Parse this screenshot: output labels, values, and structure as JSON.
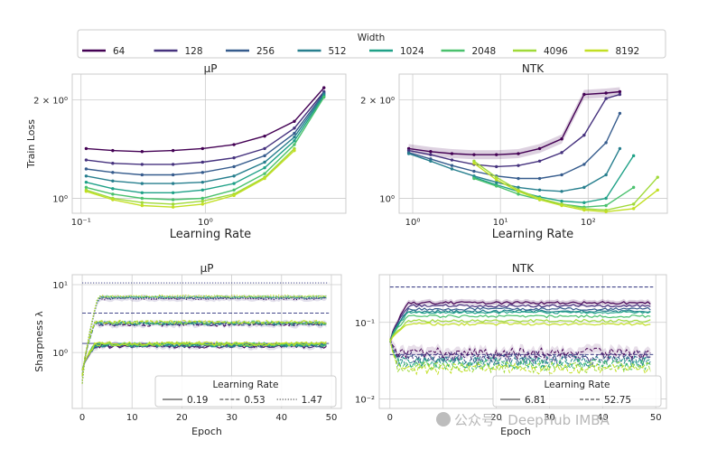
{
  "legend_top": {
    "title": "Width",
    "entries": [
      {
        "label": "64",
        "color": "#440154"
      },
      {
        "label": "128",
        "color": "#46327e"
      },
      {
        "label": "256",
        "color": "#365c8d"
      },
      {
        "label": "512",
        "color": "#277f8e"
      },
      {
        "label": "1024",
        "color": "#1fa187"
      },
      {
        "label": "2048",
        "color": "#4ac16d"
      },
      {
        "label": "4096",
        "color": "#a0da39"
      },
      {
        "label": "8192",
        "color": "#c2df23"
      }
    ]
  },
  "watermark": "公众号 · DeepHub IMBA",
  "chart_data": [
    {
      "id": "mup-loss",
      "type": "line",
      "title": "μP",
      "xlabel": "Learning Rate",
      "ylabel": "Train Loss",
      "xscale": "log",
      "yscale": "log",
      "xlim": [
        0.085,
        13.5
      ],
      "ylim": [
        0.9,
        2.4
      ],
      "xticks": [
        {
          "v": 0.1,
          "label": "10⁻¹"
        },
        {
          "v": 1,
          "label": "10⁰"
        }
      ],
      "yticks": [
        {
          "v": 1,
          "label": "10⁰"
        },
        {
          "v": 2,
          "label": "2 × 10⁰"
        }
      ],
      "x": [
        0.11,
        0.18,
        0.31,
        0.55,
        0.95,
        1.7,
        3.0,
        5.2,
        9.0
      ],
      "series": [
        {
          "name": "64",
          "values": [
            1.42,
            1.4,
            1.39,
            1.4,
            1.42,
            1.46,
            1.55,
            1.72,
            2.18
          ]
        },
        {
          "name": "128",
          "values": [
            1.31,
            1.28,
            1.27,
            1.27,
            1.29,
            1.33,
            1.42,
            1.64,
            2.12
          ]
        },
        {
          "name": "256",
          "values": [
            1.23,
            1.2,
            1.18,
            1.18,
            1.2,
            1.25,
            1.35,
            1.58,
            2.1
          ]
        },
        {
          "name": "512",
          "values": [
            1.17,
            1.13,
            1.11,
            1.11,
            1.12,
            1.17,
            1.29,
            1.54,
            2.08
          ]
        },
        {
          "name": "1024",
          "values": [
            1.12,
            1.07,
            1.04,
            1.04,
            1.06,
            1.11,
            1.24,
            1.5,
            2.06
          ]
        },
        {
          "name": "2048",
          "values": [
            1.08,
            1.03,
            1.0,
            0.99,
            1.0,
            1.06,
            1.19,
            1.46,
            2.04
          ]
        },
        {
          "name": "4096",
          "values": [
            1.06,
            1.0,
            0.97,
            0.96,
            0.98,
            1.03,
            1.16,
            1.42,
            null
          ]
        },
        {
          "name": "8192",
          "values": [
            1.05,
            0.99,
            0.95,
            0.94,
            0.96,
            1.02,
            1.15,
            1.4,
            null
          ]
        }
      ]
    },
    {
      "id": "ntk-loss",
      "type": "line",
      "title": "NTK",
      "xlabel": "Learning Rate",
      "ylabel": "",
      "xscale": "log",
      "yscale": "log",
      "xlim": [
        0.7,
        800
      ],
      "ylim": [
        0.9,
        2.4
      ],
      "xticks": [
        {
          "v": 1,
          "label": "10⁰"
        },
        {
          "v": 10,
          "label": "10¹"
        },
        {
          "v": 100,
          "label": "10²"
        }
      ],
      "yticks": [
        {
          "v": 1,
          "label": "10⁰"
        },
        {
          "v": 2,
          "label": "2 × 10⁰"
        }
      ],
      "series": [
        {
          "name": "64",
          "x": [
            0.9,
            1.6,
            2.8,
            5,
            9,
            16,
            28,
            50,
            90,
            160,
            230
          ],
          "values": [
            1.42,
            1.39,
            1.37,
            1.36,
            1.36,
            1.37,
            1.42,
            1.52,
            2.08,
            2.1,
            2.12
          ]
        },
        {
          "name": "128",
          "x": [
            0.9,
            1.6,
            2.8,
            5,
            9,
            16,
            28,
            50,
            90,
            160,
            230
          ],
          "values": [
            1.4,
            1.36,
            1.31,
            1.27,
            1.25,
            1.26,
            1.3,
            1.38,
            1.56,
            2.02,
            2.08
          ]
        },
        {
          "name": "256",
          "x": [
            0.9,
            1.6,
            2.8,
            5,
            9,
            16,
            28,
            50,
            90,
            160,
            230
          ],
          "values": [
            1.38,
            1.32,
            1.26,
            1.21,
            1.17,
            1.15,
            1.15,
            1.18,
            1.27,
            1.48,
            1.82
          ]
        },
        {
          "name": "512",
          "x": [
            0.9,
            1.6,
            2.8,
            5,
            9,
            16,
            28,
            50,
            90,
            160,
            230
          ],
          "values": [
            1.37,
            1.3,
            1.23,
            1.17,
            1.12,
            1.08,
            1.06,
            1.05,
            1.08,
            1.18,
            1.42
          ]
        },
        {
          "name": "1024",
          "x": [
            5,
            9,
            16,
            28,
            50,
            90,
            160,
            330
          ],
          "values": [
            1.16,
            1.1,
            1.05,
            1.01,
            0.98,
            0.97,
            1.0,
            1.35
          ]
        },
        {
          "name": "2048",
          "x": [
            5,
            9,
            16,
            28,
            50,
            90,
            160,
            330
          ],
          "values": [
            1.15,
            1.09,
            1.03,
            0.99,
            0.96,
            0.94,
            0.95,
            1.08
          ]
        },
        {
          "name": "4096",
          "x": [
            5,
            9,
            16,
            28,
            50,
            90,
            160,
            330,
            620
          ],
          "values": [
            1.3,
            1.16,
            1.06,
            1.0,
            0.96,
            0.93,
            0.92,
            0.96,
            1.16
          ]
        },
        {
          "name": "8192",
          "x": [
            5,
            9,
            16,
            28,
            50,
            90,
            160,
            330,
            620
          ],
          "values": [
            1.28,
            1.14,
            1.05,
            0.99,
            0.95,
            0.92,
            0.91,
            0.93,
            1.06
          ]
        }
      ]
    },
    {
      "id": "mup-sharp",
      "type": "line",
      "title": "μP",
      "xlabel": "Epoch",
      "ylabel": "Sharpness λ",
      "xscale": "linear",
      "yscale": "log",
      "xlim": [
        -2,
        52
      ],
      "ylim": [
        0.15,
        14
      ],
      "xticks": [
        {
          "v": 0,
          "label": "0"
        },
        {
          "v": 10,
          "label": "10"
        },
        {
          "v": 20,
          "label": "20"
        },
        {
          "v": 30,
          "label": "30"
        },
        {
          "v": 40,
          "label": "40"
        },
        {
          "v": 50,
          "label": "50"
        }
      ],
      "yticks": [
        {
          "v": 1,
          "label": "10⁰"
        },
        {
          "v": 10,
          "label": "10¹"
        }
      ],
      "hlines": [
        {
          "value": 10.6,
          "style": "dotted"
        },
        {
          "value": 3.8,
          "style": "dashed"
        },
        {
          "value": 1.36,
          "style": "solid"
        }
      ],
      "levels": [
        {
          "lr": "0.19",
          "plateau": 1.3
        },
        {
          "lr": "0.53",
          "plateau": 2.7
        },
        {
          "lr": "1.47",
          "plateau": 6.5
        }
      ],
      "legend": {
        "title": "Learning Rate",
        "entries": [
          {
            "label": "0.19",
            "style": "solid"
          },
          {
            "label": "0.53",
            "style": "dashed"
          },
          {
            "label": "1.47",
            "style": "dotted"
          }
        ]
      }
    },
    {
      "id": "ntk-sharp",
      "type": "line",
      "title": "NTK",
      "xlabel": "Epoch",
      "ylabel": "",
      "xscale": "linear",
      "yscale": "log",
      "xlim": [
        -2,
        52
      ],
      "ylim": [
        0.0075,
        0.42
      ],
      "xticks": [
        {
          "v": 0,
          "label": "0"
        },
        {
          "v": 10,
          "label": "10"
        },
        {
          "v": 20,
          "label": "20"
        },
        {
          "v": 30,
          "label": "30"
        },
        {
          "v": 40,
          "label": "40"
        },
        {
          "v": 50,
          "label": "50"
        }
      ],
      "yticks": [
        {
          "v": 0.01,
          "label": "10⁻²"
        },
        {
          "v": 0.1,
          "label": "10⁻¹"
        }
      ],
      "hlines": [
        {
          "value": 0.29,
          "style": "dashed"
        },
        {
          "value": 0.038,
          "style": "dashed"
        }
      ],
      "solid_levels": [
        0.18,
        0.165,
        0.15,
        0.14,
        0.135,
        0.12,
        0.105,
        0.095
      ],
      "dashed_levels": [
        0.04,
        0.036,
        0.033,
        0.031,
        0.03,
        0.028,
        0.026,
        0.025
      ],
      "legend": {
        "title": "Learning Rate",
        "entries": [
          {
            "label": "6.81",
            "style": "solid"
          },
          {
            "label": "52.75",
            "style": "dashed"
          }
        ]
      }
    }
  ]
}
